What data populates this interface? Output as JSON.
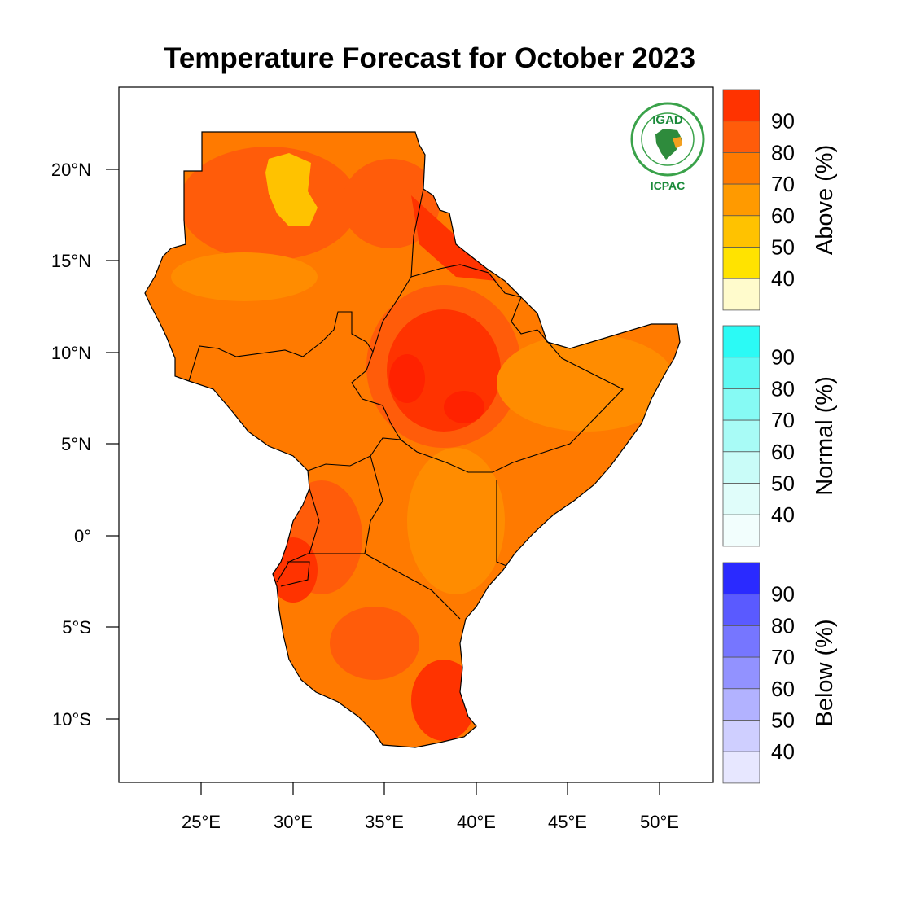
{
  "title": "Temperature Forecast for October 2023",
  "lat_labels": [
    "20°N",
    "15°N",
    "10°N",
    "5°N",
    "0°",
    "5°S",
    "10°S"
  ],
  "lon_labels": [
    "25°E",
    "30°E",
    "35°E",
    "40°E",
    "45°E",
    "50°E"
  ],
  "logo": {
    "top": "IGAD",
    "bottom": "ICPAC"
  },
  "legend": {
    "above": {
      "title": "Above (%)",
      "levels": [
        "90",
        "80",
        "70",
        "60",
        "50",
        "40"
      ],
      "colors": [
        "#ff3300",
        "#ff5c0a",
        "#ff7a00",
        "#ff9a00",
        "#ffc200",
        "#ffe300",
        "#fffbcc"
      ]
    },
    "normal": {
      "title": "Normal (%)",
      "levels": [
        "90",
        "80",
        "70",
        "60",
        "50",
        "40"
      ],
      "colors": [
        "#2bfaf5",
        "#5ff9f3",
        "#86faf4",
        "#a8fbf6",
        "#c9fcf8",
        "#e0fdfa",
        "#f2fefd"
      ]
    },
    "below": {
      "title": "Below (%)",
      "levels": [
        "90",
        "80",
        "70",
        "60",
        "50",
        "40"
      ],
      "colors": [
        "#2a2aff",
        "#5a5aff",
        "#7676ff",
        "#9292ff",
        "#b2b2ff",
        "#cfcfff",
        "#e7e7ff"
      ]
    }
  },
  "map_colors": {
    "region_base": "#ff7a00",
    "warm": "#ff5c0a",
    "hot": "#ff3300",
    "cool": "#ff8c00",
    "yellow": "#ffc200",
    "border": "#000000"
  }
}
